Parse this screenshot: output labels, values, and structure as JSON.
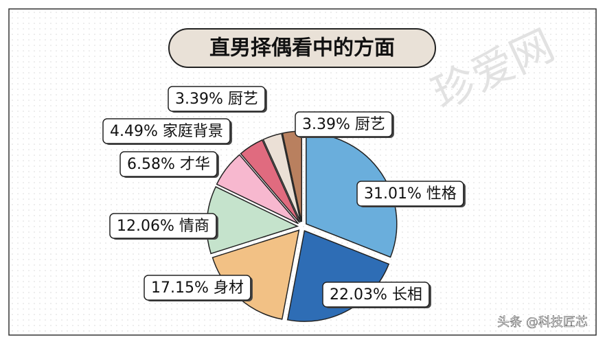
{
  "chart_data": {
    "type": "pie",
    "title": "直男择偶看中的方面",
    "watermark": "珍爱网",
    "footer": "头条 @科技匠芯",
    "categories": [
      "性格",
      "长相",
      "身材",
      "情商",
      "才华",
      "家庭背景",
      "厨艺",
      "厨艺"
    ],
    "values": [
      31.01,
      22.03,
      17.15,
      12.06,
      6.58,
      4.49,
      3.39,
      3.39
    ],
    "value_labels": [
      "31.01%",
      "22.03%",
      "17.15%",
      "12.06%",
      "6.58%",
      "4.49%",
      "3.39%",
      "3.39%"
    ],
    "colors": [
      "#6aaedc",
      "#2e6db5",
      "#f2c185",
      "#c5e3cc",
      "#f7b8cf",
      "#e06b7f",
      "#ebe0d6",
      "#b9805f"
    ]
  }
}
